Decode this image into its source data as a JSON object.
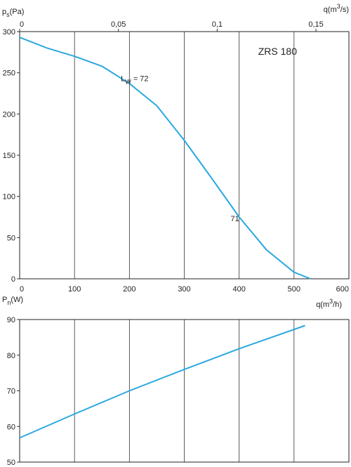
{
  "chart_data": [
    {
      "type": "line",
      "y_label": [
        "p",
        "s",
        "(Pa)"
      ],
      "x_label": [
        "q(m",
        "3",
        "/h)"
      ],
      "x2_label": [
        "q(m",
        "3",
        "/s)"
      ],
      "annotations": [
        {
          "text": [
            "L",
            "W",
            " = 72"
          ],
          "x": 210,
          "y": 240
        },
        {
          "text": [
            "71",
            "",
            ""
          ],
          "x": 410,
          "y": 70
        },
        {
          "text": [
            "ZRS 180",
            "",
            ""
          ],
          "x": 470,
          "y": 272
        }
      ],
      "x": [
        0,
        50,
        100,
        150,
        200,
        250,
        300,
        350,
        400,
        450,
        500,
        530
      ],
      "series": [
        {
          "name": "p_s",
          "color": "#2aa8df",
          "values": [
            293,
            280,
            270,
            258,
            237,
            210,
            168,
            122,
            75,
            35,
            8,
            0
          ]
        }
      ],
      "xlim": [
        0,
        600
      ],
      "xticks": [
        0,
        100,
        200,
        300,
        400,
        500,
        600
      ],
      "x2lim": [
        0,
        0.16667
      ],
      "x2ticks": [
        0,
        {
          "value": 0.05,
          "label": "0,05"
        },
        {
          "value": 0.1,
          "label": "0,1"
        },
        {
          "value": 0.15,
          "label": "0,15"
        }
      ],
      "ylim": [
        0,
        300
      ],
      "yticks": [
        0,
        50,
        100,
        150,
        200,
        250,
        300
      ],
      "xtick_labels": true,
      "grid": "x"
    },
    {
      "type": "line",
      "y_label": [
        "P",
        "n",
        "(W)"
      ],
      "x": [
        0,
        100,
        200,
        300,
        400,
        520
      ],
      "series": [
        {
          "name": "P_n",
          "color": "#2aa8df",
          "values": [
            56.8,
            63.5,
            70,
            76,
            81.8,
            88.3
          ]
        }
      ],
      "xlim": [
        0,
        600
      ],
      "xticks": [
        0,
        100,
        200,
        300,
        400,
        500,
        600
      ],
      "ylim": [
        50,
        90
      ],
      "yticks": [
        50,
        60,
        70,
        80,
        90
      ],
      "xtick_labels": false,
      "grid": "x"
    }
  ]
}
